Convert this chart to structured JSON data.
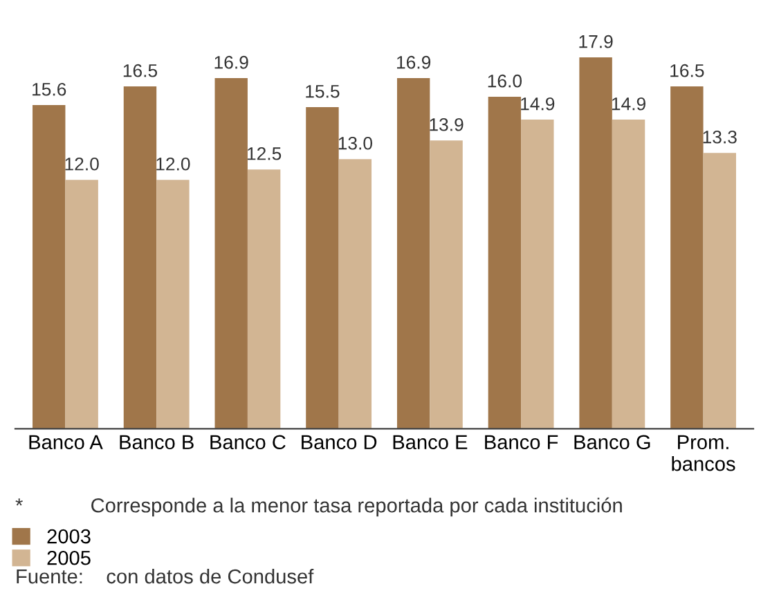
{
  "chart_data": {
    "type": "bar",
    "categories": [
      "Banco A",
      "Banco B",
      "Banco C",
      "Banco D",
      "Banco E",
      "Banco F",
      "Banco G",
      "Prom.\nbancos"
    ],
    "series": [
      {
        "name": "2003",
        "color": "#a0764a",
        "values": [
          15.6,
          16.5,
          16.9,
          15.5,
          16.9,
          16.0,
          17.9,
          16.5
        ],
        "value_labels": [
          "15.6",
          "16.5",
          "16.9",
          "15.5",
          "16.9",
          "16.0",
          "17.9",
          "16.5"
        ]
      },
      {
        "name": "2005",
        "color": "#d2b593",
        "values": [
          12.0,
          12.0,
          12.5,
          13.0,
          13.9,
          14.9,
          14.9,
          13.3
        ],
        "value_labels": [
          "12.0",
          "12.0",
          "12.5",
          "13.0",
          "13.9",
          "14.9",
          "14.9",
          "13.3"
        ]
      }
    ],
    "legend": "bottom",
    "grid": false,
    "annotations": [
      "*            Corresponde a la menor tasa reportada por cada institución",
      "Fuente:    con datos de Condusef"
    ]
  }
}
